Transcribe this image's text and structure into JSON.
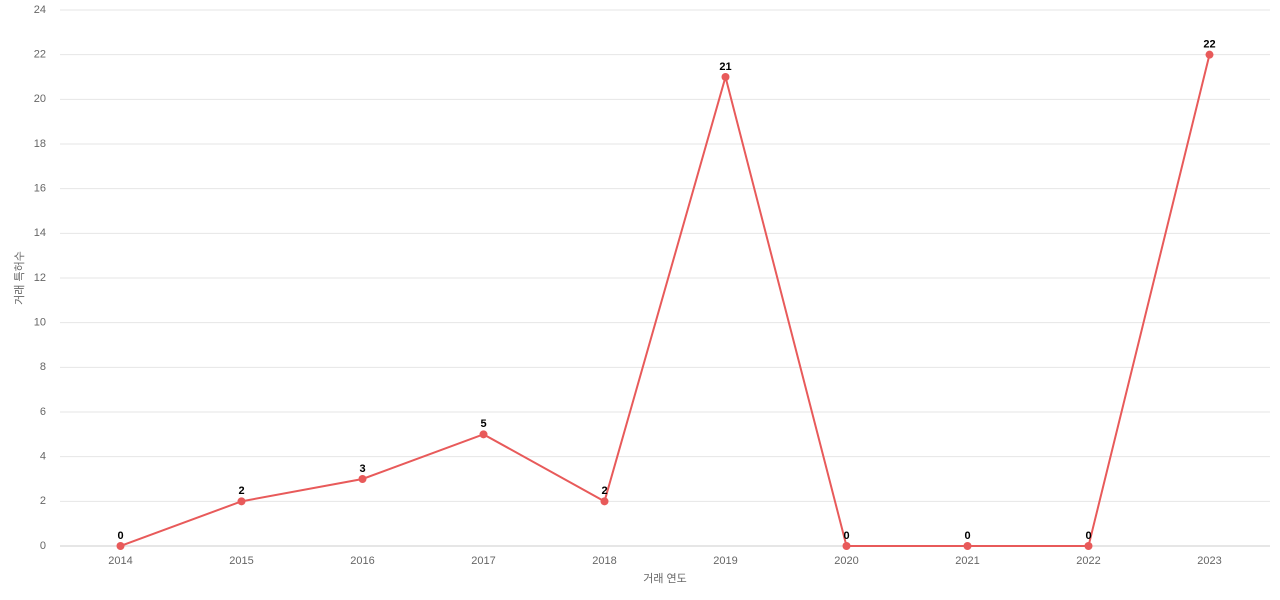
{
  "chart_data": {
    "type": "line",
    "x_label": "거래 연도",
    "y_label": "거래 특허수",
    "categories": [
      "2014",
      "2015",
      "2016",
      "2017",
      "2018",
      "2019",
      "2020",
      "2021",
      "2022",
      "2023"
    ],
    "series": [
      {
        "name": "거래 특허수",
        "color": "#e85a5a",
        "values": [
          0,
          2,
          3,
          5,
          2,
          21,
          0,
          0,
          0,
          22
        ]
      }
    ],
    "ylim": [
      0,
      24
    ],
    "yticks": [
      0,
      2,
      4,
      6,
      8,
      10,
      12,
      14,
      16,
      18,
      20,
      22,
      24
    ],
    "grid": true
  }
}
